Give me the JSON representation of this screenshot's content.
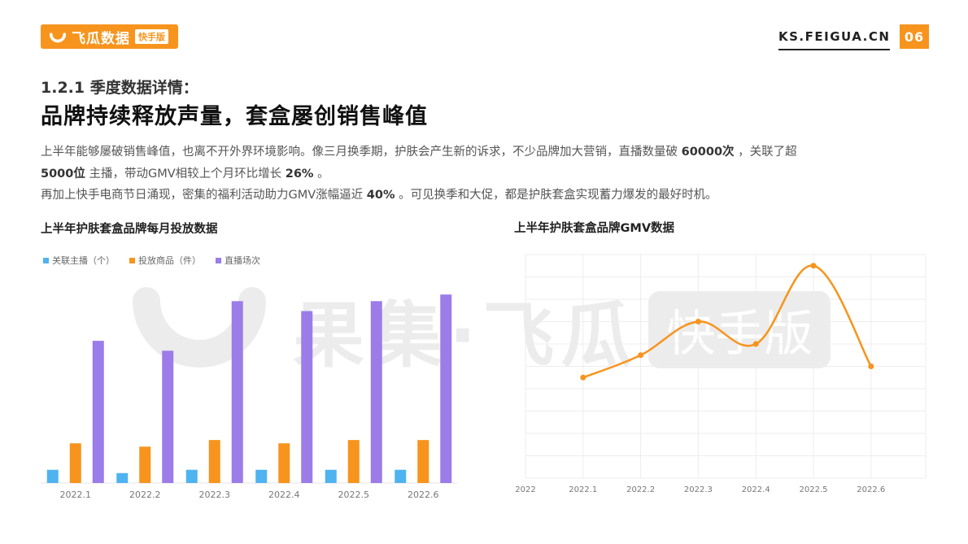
{
  "header": {
    "logo_text": "飞瓜数据",
    "logo_badge": "快手版",
    "site_url": "KS.FEIGUA.CN",
    "page_number": "06",
    "brand_color": "#f7941d"
  },
  "section_label": "1.2.1 季度数据详情：",
  "title": "品牌持续释放声量，套盒屡创销售峰值",
  "body": {
    "line1_a": "上半年能够屡破销售峰值，也离不开外界环境影响。像三月换季期，护肤会产生新的诉求，不少品牌加大营销，直播数量破",
    "line1_num": "60000次",
    "line1_b": "，关联了超",
    "line2_num1": "5000位",
    "line2_a": "主播，带动GMV相较上个月环比增长",
    "line2_num2": "26%",
    "line2_b": "。",
    "line3_a": "再加上快手电商节日涌现，密集的福利活动助力GMV涨幅逼近",
    "line3_num": "40%",
    "line3_b": "。可见换季和大促，都是护肤套盒实现蓄力爆发的最好时机。"
  },
  "watermark": {
    "text": "果集·飞瓜",
    "badge": "快手版"
  },
  "chart_data": [
    {
      "type": "bar",
      "title": "上半年护肤套盒品牌每月投放数据",
      "categories": [
        "2022.1",
        "2022.2",
        "2022.3",
        "2022.4",
        "2022.5",
        "2022.6"
      ],
      "series": [
        {
          "name": "关联主播（个）",
          "color": "#4fb3f0",
          "values": [
            4,
            3,
            4,
            4,
            4,
            4
          ]
        },
        {
          "name": "投放商品（件）",
          "color": "#f7941d",
          "values": [
            12,
            11,
            13,
            12,
            13,
            13
          ]
        },
        {
          "name": "直播场次",
          "color": "#9b7ce8",
          "values": [
            43,
            40,
            55,
            52,
            55,
            57
          ]
        }
      ],
      "ylim": [
        0,
        60
      ],
      "legend": "top-left",
      "grid": false
    },
    {
      "type": "line",
      "title": "上半年护肤套盒品牌GMV数据",
      "categories": [
        "2022",
        "2022.1",
        "2022.2",
        "2022.3",
        "2022.4",
        "2022.5",
        "2022.6"
      ],
      "series": [
        {
          "name": "",
          "color": "#f7941d",
          "values": [
            null,
            45,
            55,
            70,
            60,
            95,
            50
          ]
        }
      ],
      "ylim": [
        0,
        100
      ],
      "grid": true,
      "legend": "none"
    }
  ]
}
